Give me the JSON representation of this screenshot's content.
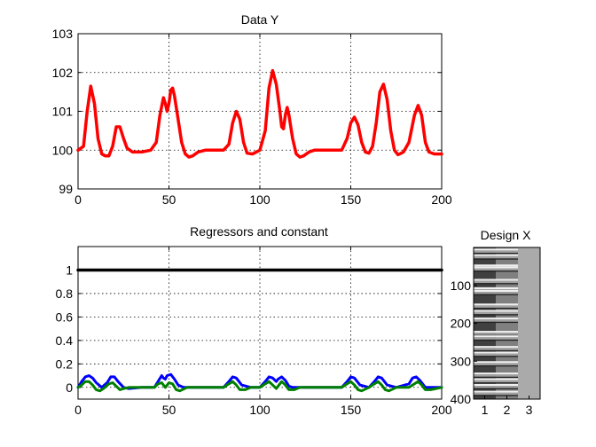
{
  "chart_data": [
    {
      "type": "line",
      "title": "Data Y",
      "xlim": [
        0,
        200
      ],
      "ylim": [
        99,
        103
      ],
      "xticks": [
        0,
        50,
        100,
        150,
        200
      ],
      "yticks": [
        99,
        100,
        101,
        102,
        103
      ],
      "grid": true,
      "series": [
        {
          "color": "#ff0000",
          "x": [
            0,
            3,
            5,
            7,
            9,
            11,
            13,
            15,
            17,
            19,
            21,
            23,
            25,
            27,
            30,
            35,
            40,
            43,
            45,
            47,
            48,
            49,
            50,
            51,
            52,
            53,
            55,
            57,
            59,
            61,
            63,
            66,
            70,
            75,
            80,
            83,
            85,
            87,
            89,
            91,
            93,
            96,
            100,
            103,
            105,
            107,
            109,
            111,
            112,
            113,
            114,
            115,
            116,
            118,
            120,
            122,
            124,
            127,
            130,
            135,
            140,
            145,
            148,
            150,
            152,
            154,
            156,
            158,
            160,
            162,
            164,
            166,
            168,
            170,
            172,
            174,
            176,
            179,
            182,
            185,
            187,
            189,
            191,
            193,
            196,
            200
          ],
          "y": [
            100,
            100.1,
            101.0,
            101.65,
            101.2,
            100.3,
            99.9,
            99.85,
            99.85,
            100.1,
            100.6,
            100.6,
            100.3,
            100.05,
            99.95,
            99.95,
            100.0,
            100.2,
            100.9,
            101.35,
            101.2,
            101.0,
            101.2,
            101.55,
            101.6,
            101.4,
            100.8,
            100.2,
            99.9,
            99.82,
            99.85,
            99.95,
            100.0,
            100.0,
            100.0,
            100.15,
            100.7,
            101.0,
            100.8,
            100.2,
            99.92,
            99.9,
            100.0,
            100.5,
            101.6,
            102.05,
            101.7,
            101.0,
            100.6,
            100.55,
            100.9,
            101.1,
            100.9,
            100.3,
            99.9,
            99.82,
            99.85,
            99.95,
            100.0,
            100.0,
            100.0,
            100.0,
            100.3,
            100.7,
            100.85,
            100.65,
            100.2,
            99.95,
            99.92,
            100.1,
            100.7,
            101.5,
            101.7,
            101.3,
            100.5,
            100.0,
            99.88,
            99.95,
            100.2,
            100.9,
            101.15,
            100.9,
            100.2,
            99.95,
            99.9,
            99.9
          ]
        }
      ]
    },
    {
      "type": "line",
      "title": "Regressors and constant",
      "xlim": [
        0,
        200
      ],
      "ylim": [
        -0.1,
        1.2
      ],
      "xticks": [
        0,
        50,
        100,
        150,
        200
      ],
      "yticks": [
        0,
        0.2,
        0.4,
        0.6,
        0.8,
        1
      ],
      "ytick_labels": [
        "0",
        "0.2",
        "0.4",
        "0.6",
        "0.8",
        "1"
      ],
      "grid": true,
      "series": [
        {
          "color": "#000000",
          "x": [
            0,
            200
          ],
          "y": [
            1,
            1
          ]
        },
        {
          "color": "#0000ff",
          "x": [
            0,
            2,
            4,
            6,
            8,
            10,
            13,
            16,
            18,
            20,
            22,
            25,
            28,
            35,
            42,
            44,
            46,
            47,
            48,
            49,
            51,
            53,
            55,
            58,
            62,
            80,
            83,
            85,
            87,
            90,
            95,
            100,
            103,
            105,
            107,
            109,
            110,
            112,
            114,
            116,
            118,
            122,
            145,
            148,
            150,
            152,
            155,
            160,
            163,
            165,
            167,
            170,
            175,
            182,
            184,
            186,
            188,
            191,
            200
          ],
          "y": [
            0,
            0.05,
            0.09,
            0.1,
            0.08,
            0.04,
            0.0,
            0.04,
            0.09,
            0.09,
            0.05,
            0.0,
            -0.01,
            0.0,
            0.0,
            0.05,
            0.1,
            0.08,
            0.07,
            0.1,
            0.11,
            0.07,
            0.02,
            0.0,
            0.0,
            0.0,
            0.05,
            0.09,
            0.08,
            0.02,
            0.0,
            0.0,
            0.05,
            0.09,
            0.08,
            0.05,
            0.07,
            0.09,
            0.06,
            0.01,
            0.0,
            0.0,
            0.0,
            0.05,
            0.09,
            0.08,
            0.02,
            0.0,
            0.05,
            0.09,
            0.08,
            0.02,
            0.0,
            0.03,
            0.08,
            0.09,
            0.06,
            0.0,
            0.0
          ]
        },
        {
          "color": "#008000",
          "x": [
            0,
            2,
            4,
            6,
            8,
            10,
            12,
            14,
            17,
            19,
            21,
            23,
            25,
            28,
            35,
            42,
            44,
            46,
            48,
            50,
            52,
            54,
            56,
            60,
            80,
            83,
            85,
            87,
            89,
            92,
            95,
            100,
            103,
            105,
            107,
            109,
            112,
            114,
            116,
            119,
            122,
            145,
            148,
            150,
            152,
            154,
            156,
            160,
            163,
            165,
            167,
            169,
            171,
            175,
            182,
            185,
            187,
            189,
            191,
            194,
            200
          ],
          "y": [
            0,
            0.02,
            0.05,
            0.05,
            0.02,
            -0.02,
            -0.03,
            -0.01,
            0.03,
            0.04,
            0.01,
            -0.02,
            -0.01,
            0.0,
            0.0,
            0.0,
            0.03,
            0.04,
            0.0,
            0.04,
            0.03,
            -0.02,
            -0.03,
            0.0,
            0.0,
            0.03,
            0.05,
            0.02,
            -0.02,
            -0.02,
            0.0,
            0.0,
            0.03,
            0.05,
            0.02,
            -0.01,
            0.05,
            0.02,
            -0.02,
            -0.02,
            0.0,
            0.0,
            0.03,
            0.05,
            0.02,
            -0.02,
            -0.03,
            0.0,
            0.03,
            0.05,
            0.02,
            -0.02,
            -0.03,
            0.0,
            0.0,
            0.03,
            0.05,
            0.02,
            -0.02,
            -0.02,
            0.0
          ]
        }
      ]
    },
    {
      "type": "heatmap",
      "title": "Design X",
      "columns": [
        1,
        2,
        3
      ],
      "rows": 400,
      "yticks": [
        100,
        200,
        300,
        400
      ],
      "xticks": [
        1,
        2,
        3
      ],
      "column_events": [
        [
          3,
          18,
          45,
          50,
          83,
          105,
          112,
          148,
          165,
          185,
          220,
          232,
          260,
          275,
          300,
          330,
          345,
          360,
          378
        ],
        [
          3,
          18,
          45,
          50,
          83,
          105,
          112,
          148,
          165,
          185,
          220,
          232,
          260,
          275,
          300,
          330,
          345,
          360,
          378
        ],
        []
      ],
      "column_base_colors": [
        "#404040",
        "#808080",
        "#aaaaaa"
      ]
    }
  ]
}
